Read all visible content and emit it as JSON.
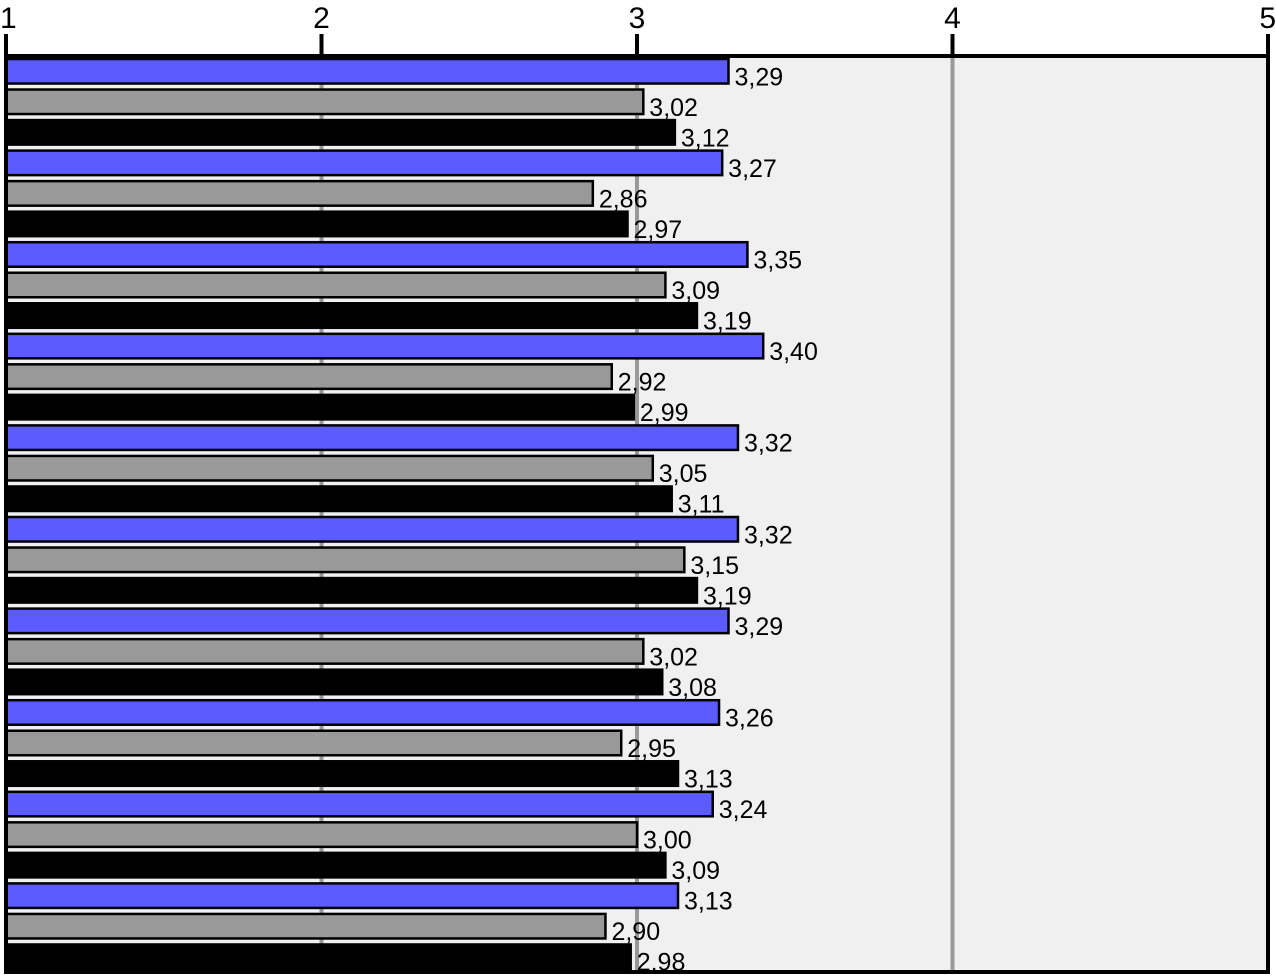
{
  "chart_data": {
    "type": "bar",
    "orientation": "horizontal",
    "title": "",
    "xlabel": "",
    "ylabel": "",
    "xlim": [
      1,
      5
    ],
    "x_ticks": [
      "1",
      "2",
      "3",
      "4",
      "5"
    ],
    "grid": true,
    "legend": "none",
    "categories": [
      "",
      "",
      "",
      "",
      "",
      "",
      "",
      "",
      "",
      ""
    ],
    "series": [
      {
        "color": "#5b5bff",
        "values": [
          3.29,
          3.27,
          3.35,
          3.4,
          3.32,
          3.32,
          3.29,
          3.26,
          3.24,
          3.13
        ],
        "labels": [
          "3,29",
          "3,27",
          "3,35",
          "3,40",
          "3,32",
          "3,32",
          "3,29",
          "3,26",
          "3,24",
          "3,13"
        ]
      },
      {
        "color": "#999999",
        "values": [
          3.02,
          2.86,
          3.09,
          2.92,
          3.05,
          3.15,
          3.02,
          2.95,
          3.0,
          2.9
        ],
        "labels": [
          "3,02",
          "2,86",
          "3,09",
          "2,92",
          "3,05",
          "3,15",
          "3,02",
          "2,95",
          "3,00",
          "2,90"
        ]
      },
      {
        "color": "#000000",
        "values": [
          3.12,
          2.97,
          3.19,
          2.99,
          3.11,
          3.19,
          3.08,
          3.13,
          3.09,
          2.98
        ],
        "labels": [
          "3,12",
          "2,97",
          "3,19",
          "2,99",
          "3,11",
          "3,19",
          "3,08",
          "3,13",
          "3,09",
          "2,98"
        ]
      }
    ],
    "colors": {
      "plot_background": "#f0f0f0",
      "gridline": "#999999",
      "axis": "#000000"
    }
  }
}
